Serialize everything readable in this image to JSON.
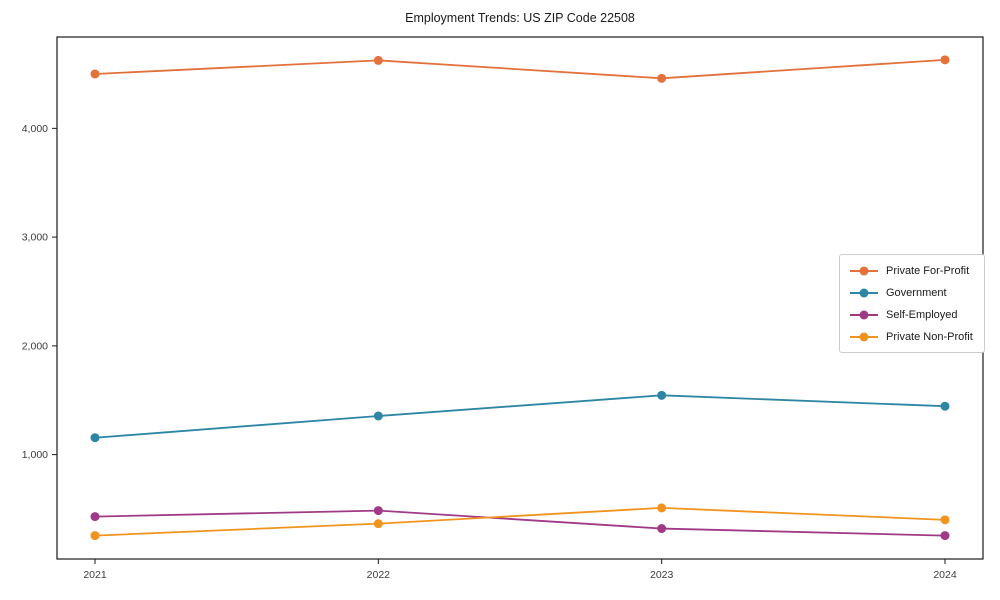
{
  "chart_data": {
    "type": "line",
    "title": "Employment Trends: US ZIP Code 22508",
    "categories": [
      "2021",
      "2022",
      "2023",
      "2024"
    ],
    "series": [
      {
        "name": "Private For-Profit",
        "color": "#e2713b",
        "values": [
          4500,
          4625,
          4460,
          4630
        ]
      },
      {
        "name": "Government",
        "color": "#2e86a5",
        "values": [
          1155,
          1355,
          1545,
          1445
        ]
      },
      {
        "name": "Self-Employed",
        "color": "#a03a87",
        "values": [
          430,
          485,
          320,
          255
        ]
      },
      {
        "name": "Private Non-Profit",
        "color": "#f0941f",
        "values": [
          255,
          365,
          510,
          400
        ]
      }
    ],
    "xlabel": "",
    "ylabel": "",
    "ylim": [
      40,
      4840
    ],
    "yticks": [
      1000,
      2000,
      3000,
      4000
    ],
    "ytick_labels": [
      "1,000",
      "2,000",
      "3,000",
      "4,000"
    ],
    "grid": false,
    "legend_position": "center-right",
    "colors": {
      "spine": "#1a1a1a",
      "tick_label": "#3c3c3c",
      "legend_border": "#cccccc",
      "background": "#ffffff"
    }
  }
}
